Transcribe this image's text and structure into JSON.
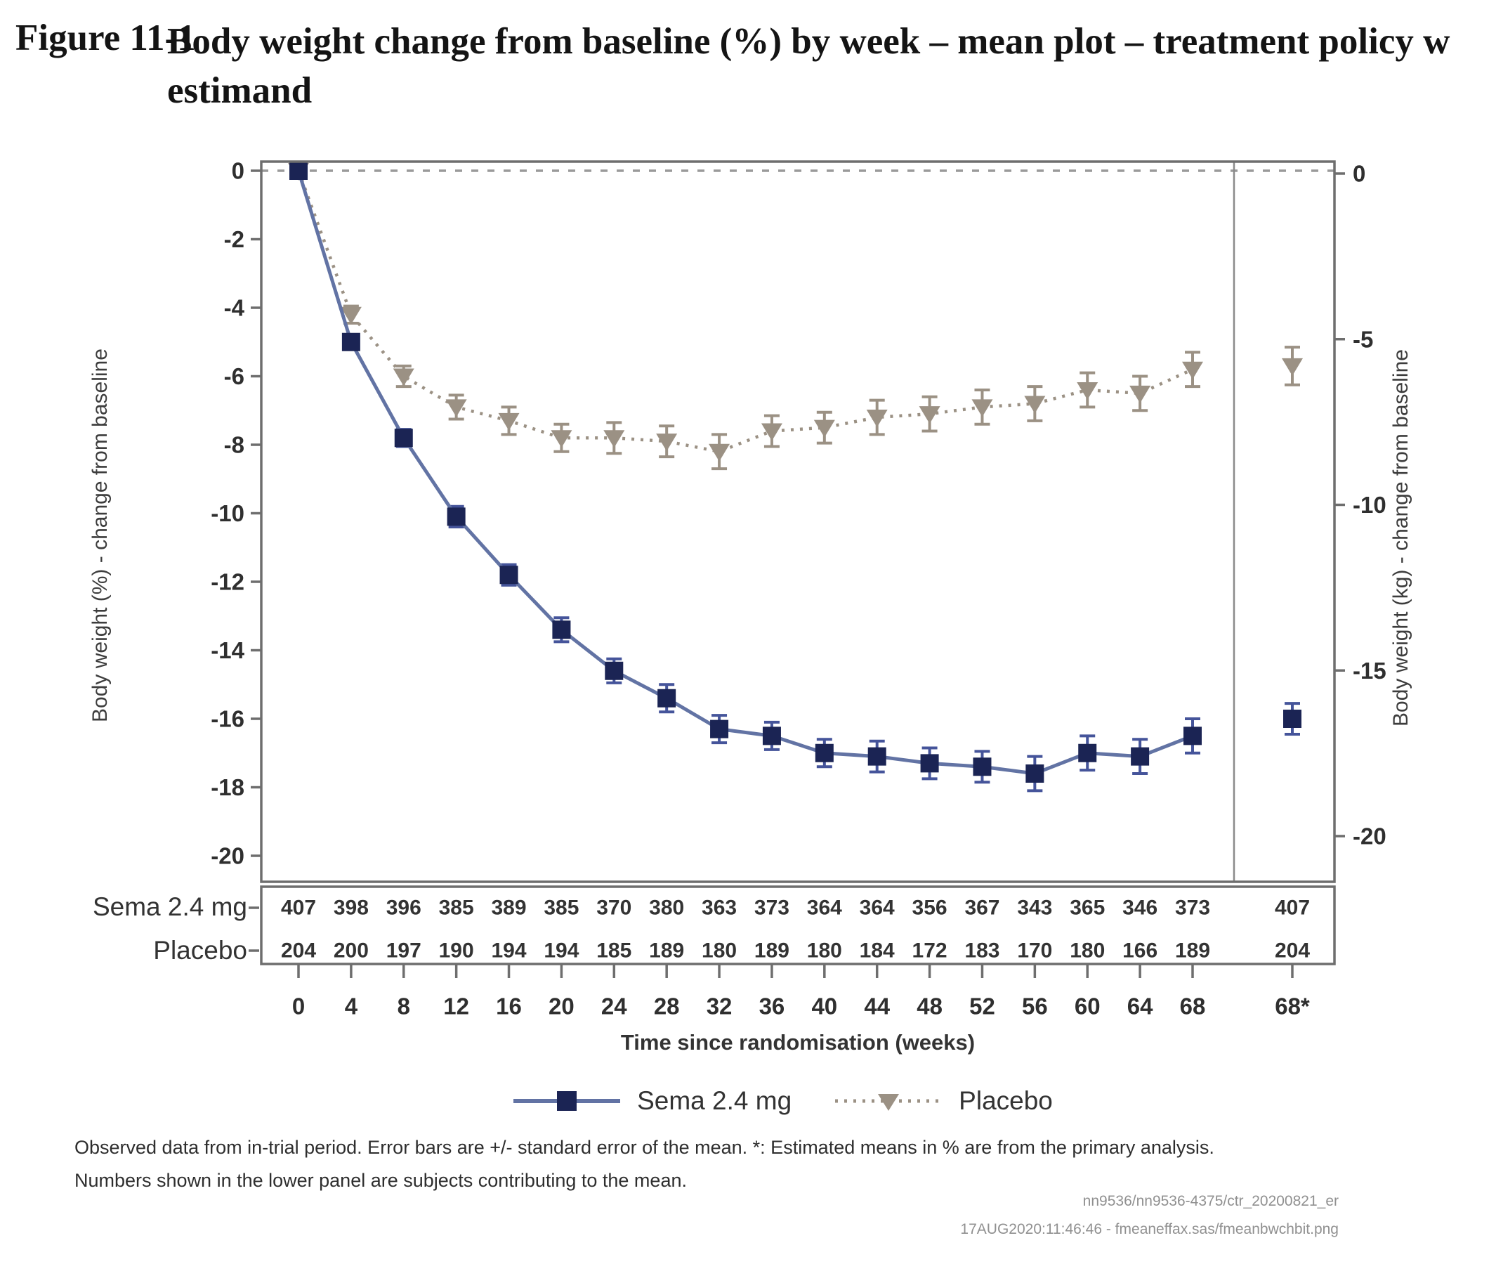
{
  "figure": {
    "label": "Figure 11-1",
    "title_line1": "Body weight change from baseline (%) by week – mean plot – treatment policy w",
    "title_line2": "estimand"
  },
  "chart_data": {
    "type": "line",
    "title": "Body weight change from baseline (%) by week – mean plot – treatment policy estimand",
    "x": [
      0,
      4,
      8,
      12,
      16,
      20,
      24,
      28,
      32,
      36,
      40,
      44,
      48,
      52,
      56,
      60,
      64,
      68
    ],
    "x_star_label": "68*",
    "series": [
      {
        "name": "Sema 2.4 mg",
        "marker": "square",
        "line_style": "solid",
        "marker_color": "#1b2454",
        "line_color": "#6273a4",
        "errorbar_color": "#45549a",
        "values_pct": [
          0,
          -5.0,
          -7.8,
          -10.1,
          -11.8,
          -13.4,
          -14.6,
          -15.4,
          -16.3,
          -16.5,
          -17.0,
          -17.1,
          -17.3,
          -17.4,
          -17.6,
          -17.0,
          -17.1,
          -16.5
        ],
        "se": [
          0,
          0.2,
          0.25,
          0.3,
          0.3,
          0.35,
          0.35,
          0.4,
          0.4,
          0.4,
          0.4,
          0.45,
          0.45,
          0.45,
          0.5,
          0.5,
          0.5,
          0.5
        ],
        "star_value_pct": -16.0,
        "star_se": 0.45
      },
      {
        "name": "Placebo",
        "marker": "triangle-down",
        "line_style": "dotted",
        "marker_color": "#9b9184",
        "line_color": "#9b9184",
        "errorbar_color": "#9b9184",
        "values_pct": [
          0,
          -4.2,
          -6.0,
          -6.9,
          -7.3,
          -7.8,
          -7.8,
          -7.9,
          -8.2,
          -7.6,
          -7.5,
          -7.2,
          -7.1,
          -6.9,
          -6.8,
          -6.4,
          -6.5,
          -5.8
        ],
        "se": [
          0,
          0.25,
          0.3,
          0.35,
          0.4,
          0.4,
          0.45,
          0.45,
          0.5,
          0.45,
          0.45,
          0.5,
          0.5,
          0.5,
          0.5,
          0.5,
          0.5,
          0.5
        ],
        "star_value_pct": -5.7,
        "star_se": 0.55
      }
    ],
    "left_axis": {
      "label": "Body weight (%) - change from baseline",
      "ticks": [
        0,
        -2,
        -4,
        -6,
        -8,
        -10,
        -12,
        -14,
        -16,
        -18,
        -20
      ],
      "range": [
        0,
        -20
      ]
    },
    "right_axis": {
      "label": "Body weight (kg) - change from baseline",
      "ticks": [
        0,
        -5,
        -10,
        -15,
        -20
      ],
      "range": [
        0,
        -20
      ]
    },
    "x_axis": {
      "label": "Time since randomisation (weeks)"
    },
    "zero_reference_line": 0,
    "legend_position": "bottom"
  },
  "lower_panel": {
    "rows": [
      {
        "label": "Sema 2.4 mg",
        "counts": [
          407,
          398,
          396,
          385,
          389,
          385,
          370,
          380,
          363,
          373,
          364,
          364,
          356,
          367,
          343,
          365,
          346,
          373
        ],
        "star_count": 407
      },
      {
        "label": "Placebo",
        "counts": [
          204,
          200,
          197,
          190,
          194,
          194,
          185,
          189,
          180,
          189,
          180,
          184,
          172,
          183,
          170,
          180,
          166,
          189
        ],
        "star_count": 204
      }
    ]
  },
  "legend": {
    "items": [
      {
        "label": "Sema 2.4 mg"
      },
      {
        "label": "Placebo"
      }
    ]
  },
  "footnotes": {
    "line1": "Observed data from in-trial period. Error bars are +/- standard error of the mean. *: Estimated means in % are from the primary analysis.",
    "line2": "Numbers shown in the lower panel are subjects contributing to the mean."
  },
  "credits": {
    "line1": "nn9536/nn9536-4375/ctr_20200821_er",
    "line2": "17AUG2020:11:46:46 - fmeaneffax.sas/fmeanbwchbit.png"
  },
  "colors": {
    "axis": "#6e6e6e",
    "separator": "#8a8a8a",
    "zero_line": "#9a9a9a",
    "tick_text": "#2f2f2f",
    "counts_text": "#333333"
  }
}
